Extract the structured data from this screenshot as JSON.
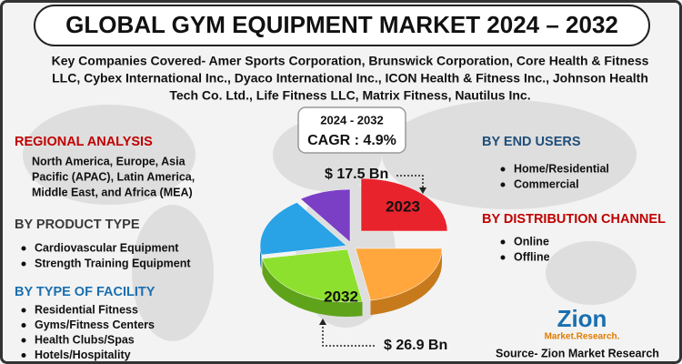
{
  "header": {
    "title": "GLOBAL GYM EQUIPMENT MARKET 2024 – 2032"
  },
  "companies": [
    "Key Companies Covered- Amer Sports Corporation, Brunswick Corporation, Core Health & Fitness",
    "LLC, Cybex International Inc., Dyaco International Inc., ICON Health & Fitness Inc., Johnson Health",
    "Tech Co. Ltd., Life Fitness LLC, Matrix Fitness, Nautilus Inc."
  ],
  "cagr": {
    "period": "2024 - 2032",
    "label": "CAGR : 4.9%"
  },
  "market": {
    "start_value": "$ 17.5 Bn",
    "start_year": "2023",
    "end_value": "$ 26.9 Bn",
    "end_year": "2032"
  },
  "regional": {
    "title": "REGIONAL ANALYSIS",
    "lines": [
      "North America, Europe, Asia",
      "Pacific (APAC), Latin America,",
      "Middle East, and Africa (MEA)"
    ]
  },
  "product_type": {
    "title": "BY PRODUCT TYPE",
    "items": [
      "Cardiovascular Equipment",
      "Strength Training Equipment"
    ]
  },
  "facility": {
    "title": "BY TYPE OF FACILITY",
    "items": [
      "Residential Fitness",
      "Gyms/Fitness Centers",
      "Health Clubs/Spas",
      "Hotels/Hospitality"
    ]
  },
  "end_users": {
    "title": "BY END USERS",
    "items": [
      "Home/Residential",
      "Commercial"
    ]
  },
  "distribution": {
    "title": "BY DISTRIBUTION CHANNEL",
    "items": [
      "Online",
      "Offline"
    ]
  },
  "logo": {
    "name": "Zion",
    "sub": "Market.Research."
  },
  "source": "Source- Zion Market Research"
}
